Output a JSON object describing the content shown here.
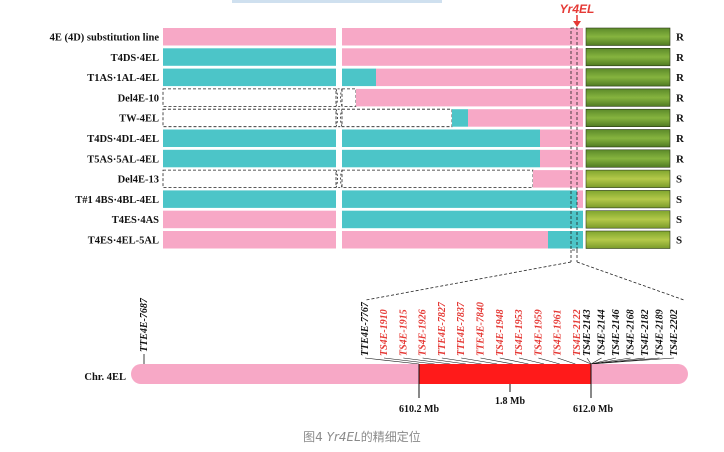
{
  "gene_name": "Yr4EL",
  "caption": {
    "prefix": "图4 ",
    "gene": "Yr4EL",
    "suffix": "的精细定位"
  },
  "colors": {
    "pink": "#f7a8c6",
    "teal": "#4cc5c8",
    "red": "#ff1a1a",
    "chrom_pink": "#f7a8c6"
  },
  "lines": [
    {
      "label": "4E (4D) substitution line",
      "resistance": "R",
      "segments": [
        "P",
        "P",
        "P",
        "P"
      ]
    },
    {
      "label": "T4DS·4EL",
      "resistance": "R",
      "segments": [
        "T",
        "P",
        "P",
        "P"
      ]
    },
    {
      "label": "T1AS·1AL-4EL",
      "resistance": "R",
      "segments": [
        "T",
        "T",
        "P",
        "P"
      ]
    },
    {
      "label": "Del4E-10",
      "resistance": "R",
      "segments": [
        "D",
        "D",
        "P",
        "P"
      ]
    },
    {
      "label": "TW-4EL",
      "resistance": "R",
      "segments": [
        "D",
        "D",
        "T",
        "P"
      ]
    },
    {
      "label": "T4DS·4DL-4EL",
      "resistance": "R",
      "segments": [
        "T",
        "T",
        "T",
        "P"
      ]
    },
    {
      "label": "T5AS·5AL-4EL",
      "resistance": "R",
      "segments": [
        "T",
        "T",
        "T",
        "P"
      ]
    },
    {
      "label": "Del4E-13",
      "resistance": "S",
      "segments": [
        "D",
        "D",
        "D",
        "P"
      ]
    },
    {
      "label": "T#1 4BS·4BL-4EL",
      "resistance": "S",
      "segments": [
        "T",
        "T",
        "T",
        "T"
      ]
    },
    {
      "label": "T4ES·4AS",
      "resistance": "S",
      "segments": [
        "P",
        "T",
        "T",
        "T"
      ]
    },
    {
      "label": "T4ES·4EL-5AL",
      "resistance": "S",
      "segments": [
        "P",
        "P",
        "P",
        "T"
      ]
    }
  ],
  "chromosome": {
    "name": "Chr. 4EL",
    "left_marker": "TTE4E-7687",
    "markers_black_left": [
      "TTE4E-7767"
    ],
    "markers_red": [
      "TS4E-1910",
      "TS4E-1915",
      "TS4E-1926",
      "TTE4E-7827",
      "TTE4E-7837",
      "TTE4E-7840",
      "TS4E-1948",
      "TS4E-1953",
      "TS4E-1959",
      "TS4E-1961",
      "TS4E-2122"
    ],
    "markers_black_right": [
      "TS4E-2143",
      "TS4E-2144",
      "TS4E-2146",
      "TS4E-2168",
      "TS4E-2182",
      "TS4E-2189",
      "TS4E-2202"
    ],
    "interval_start": "610.2 Mb",
    "interval_length": "1.8 Mb",
    "interval_end": "612.0 Mb"
  }
}
